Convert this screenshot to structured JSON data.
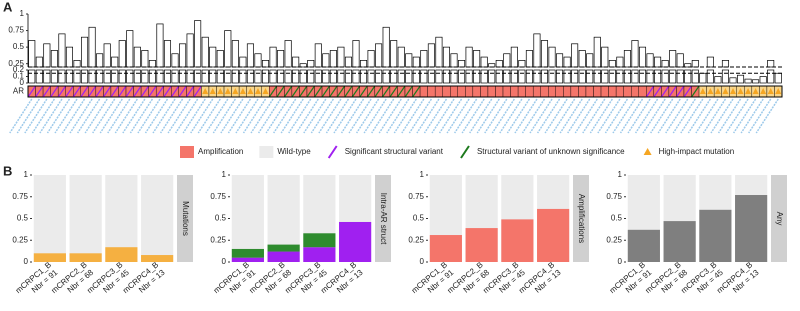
{
  "panel_labels": [
    "A",
    "B"
  ],
  "chart_data": [
    {
      "type": "broken-bar",
      "color": "#ffffff",
      "ylim_upper": [
        0.2,
        1
      ],
      "yticks_upper": [
        0.25,
        0.5,
        0.75,
        1
      ],
      "ylim_lower": [
        0,
        0.2
      ],
      "yticks_lower": [
        0,
        0.1,
        0.2
      ],
      "reference_lines": [
        0.15
      ],
      "values": [
        0.6,
        0.35,
        0.55,
        0.45,
        0.7,
        0.5,
        0.3,
        0.65,
        0.8,
        0.4,
        0.55,
        0.35,
        0.6,
        0.75,
        0.5,
        0.45,
        0.3,
        0.85,
        0.6,
        0.4,
        0.55,
        0.7,
        0.9,
        0.65,
        0.5,
        0.45,
        0.75,
        0.6,
        0.35,
        0.55,
        0.4,
        0.3,
        0.5,
        0.45,
        0.6,
        0.35,
        0.25,
        0.3,
        0.55,
        0.4,
        0.45,
        0.5,
        0.35,
        0.6,
        0.3,
        0.45,
        0.55,
        0.8,
        0.6,
        0.5,
        0.4,
        0.35,
        0.45,
        0.55,
        0.65,
        0.5,
        0.4,
        0.3,
        0.5,
        0.45,
        0.35,
        0.25,
        0.3,
        0.4,
        0.5,
        0.3,
        0.45,
        0.7,
        0.6,
        0.5,
        0.4,
        0.35,
        0.55,
        0.45,
        0.4,
        0.65,
        0.5,
        0.3,
        0.35,
        0.45,
        0.6,
        0.5,
        0.4,
        0.35,
        0.3,
        0.45,
        0.4,
        0.25,
        0.3,
        0.15,
        0.35,
        0.1,
        0.3,
        0.08,
        0.12,
        0.06,
        0.05,
        0.1,
        0.3,
        0.15
      ]
    },
    {
      "type": "tile",
      "row_label": "AR",
      "legend": [
        {
          "name": "Amplification",
          "color": "#f4756a"
        },
        {
          "name": "Wild-type",
          "color": "#ebebeb"
        },
        {
          "name": "Significant structural variant",
          "color": "#a020f0"
        },
        {
          "name": "Structural variant of unknown significance",
          "color": "#1e7a1e"
        },
        {
          "name": "High-impact mutation",
          "color": "#f5a623"
        }
      ],
      "status": [
        2,
        2,
        2,
        2,
        2,
        2,
        2,
        2,
        2,
        2,
        2,
        2,
        2,
        2,
        2,
        2,
        2,
        2,
        2,
        2,
        2,
        2,
        2,
        4,
        4,
        4,
        4,
        4,
        4,
        4,
        4,
        4,
        3,
        3,
        3,
        3,
        3,
        3,
        3,
        3,
        3,
        3,
        3,
        3,
        3,
        3,
        3,
        3,
        3,
        3,
        3,
        3,
        0,
        0,
        0,
        0,
        0,
        0,
        0,
        0,
        0,
        0,
        0,
        0,
        0,
        0,
        0,
        0,
        0,
        0,
        0,
        0,
        0,
        0,
        0,
        0,
        0,
        0,
        0,
        0,
        0,
        0,
        2,
        2,
        2,
        2,
        2,
        2,
        3,
        4,
        4,
        4,
        4,
        4,
        4,
        4,
        4,
        4,
        4,
        4
      ]
    },
    {
      "type": "stacked-bar",
      "facet": "Mutations",
      "categories": [
        "mCRPC1_B",
        "mCRPC2_B",
        "mCRPC3_B",
        "mCRPC4_B"
      ],
      "category_sublabels": [
        "Nbr = 91",
        "Nbr = 68",
        "Nbr = 45",
        "Nbr = 13"
      ],
      "ylim": [
        0,
        1
      ],
      "yticks": [
        0,
        0.25,
        0.5,
        0.75,
        1
      ],
      "series": [
        {
          "color": "#f5b041",
          "values": [
            0.1,
            0.1,
            0.17,
            0.08
          ]
        }
      ]
    },
    {
      "type": "stacked-bar",
      "facet": "Intra-AR struct",
      "categories": [
        "mCRPC1_B",
        "mCRPC2_B",
        "mCRPC3_B",
        "mCRPC4_B"
      ],
      "category_sublabels": [
        "Nbr = 91",
        "Nbr = 68",
        "Nbr = 45",
        "Nbr = 13"
      ],
      "ylim": [
        0,
        1
      ],
      "yticks": [
        0,
        0.25,
        0.5,
        0.75,
        1
      ],
      "series": [
        {
          "color": "#a020f0",
          "values": [
            0.05,
            0.12,
            0.17,
            0.46
          ]
        },
        {
          "color": "#2e8b2e",
          "values": [
            0.1,
            0.08,
            0.16,
            0
          ]
        }
      ]
    },
    {
      "type": "stacked-bar",
      "facet": "Amplifications",
      "categories": [
        "mCRPC1_B",
        "mCRPC2_B",
        "mCRPC3_B",
        "mCRPC4_B"
      ],
      "category_sublabels": [
        "Nbr = 91",
        "Nbr = 68",
        "Nbr = 45",
        "Nbr = 13"
      ],
      "ylim": [
        0,
        1
      ],
      "yticks": [
        0,
        0.25,
        0.5,
        0.75,
        1
      ],
      "series": [
        {
          "color": "#f4756a",
          "values": [
            0.31,
            0.39,
            0.49,
            0.61
          ]
        }
      ]
    },
    {
      "type": "stacked-bar",
      "facet": "Any",
      "categories": [
        "mCRPC1_B",
        "mCRPC2_B",
        "mCRPC3_B",
        "mCRPC4_B"
      ],
      "category_sublabels": [
        "Nbr = 91",
        "Nbr = 68",
        "Nbr = 45",
        "Nbr = 13"
      ],
      "ylim": [
        0,
        1
      ],
      "yticks": [
        0,
        0.25,
        0.5,
        0.75,
        1
      ],
      "series": [
        {
          "color": "#7f7f7f",
          "values": [
            0.37,
            0.47,
            0.6,
            0.77
          ]
        }
      ]
    }
  ]
}
